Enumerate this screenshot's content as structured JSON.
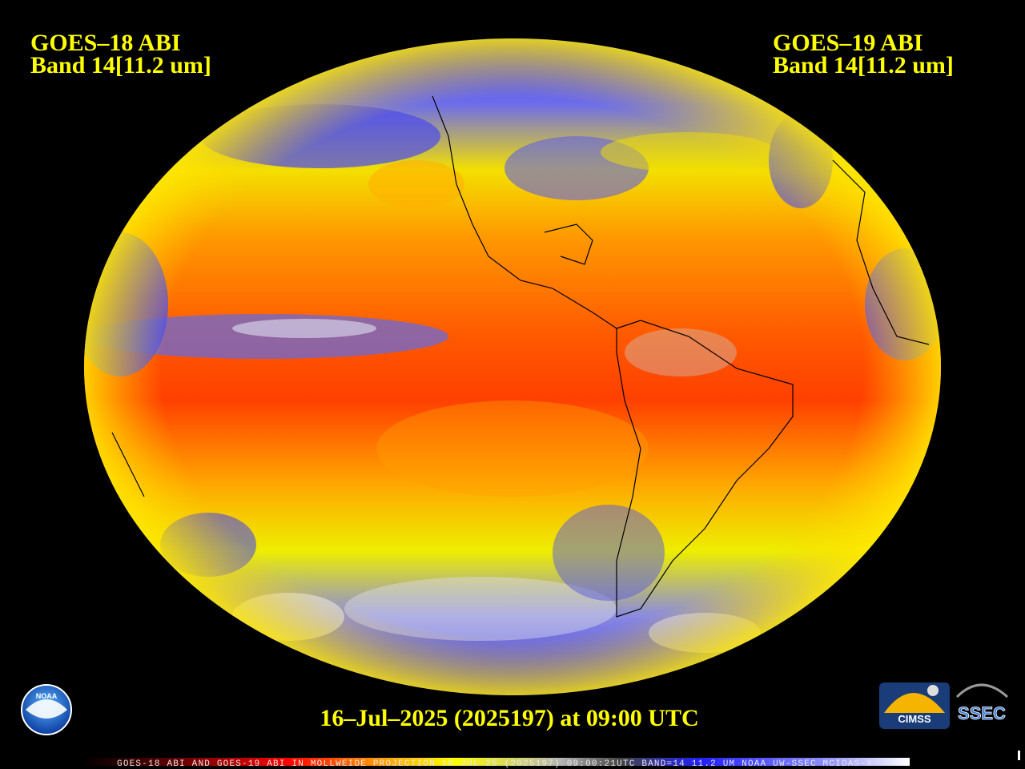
{
  "header": {
    "left": {
      "title": "GOES–18 ABI",
      "band": "Band 14[11.2 um]"
    },
    "right": {
      "title": "GOES–19 ABI",
      "band": "Band 14[11.2 um]"
    }
  },
  "timestamp": "16–Jul–2025 (2025197) at 09:00 UTC",
  "footer": "GOES-18 ABI AND GOES-19 ABI IN MOLLWEIDE PROJECTION 16 JUL 25 (2025197) 09:00:21UTC BAND=14 11.2 UM NOAA UW-SSEC MCIDAS-X",
  "logos": {
    "noaa": "NOAA",
    "cimss": "CIMSS",
    "ssec": "SSEC"
  }
}
